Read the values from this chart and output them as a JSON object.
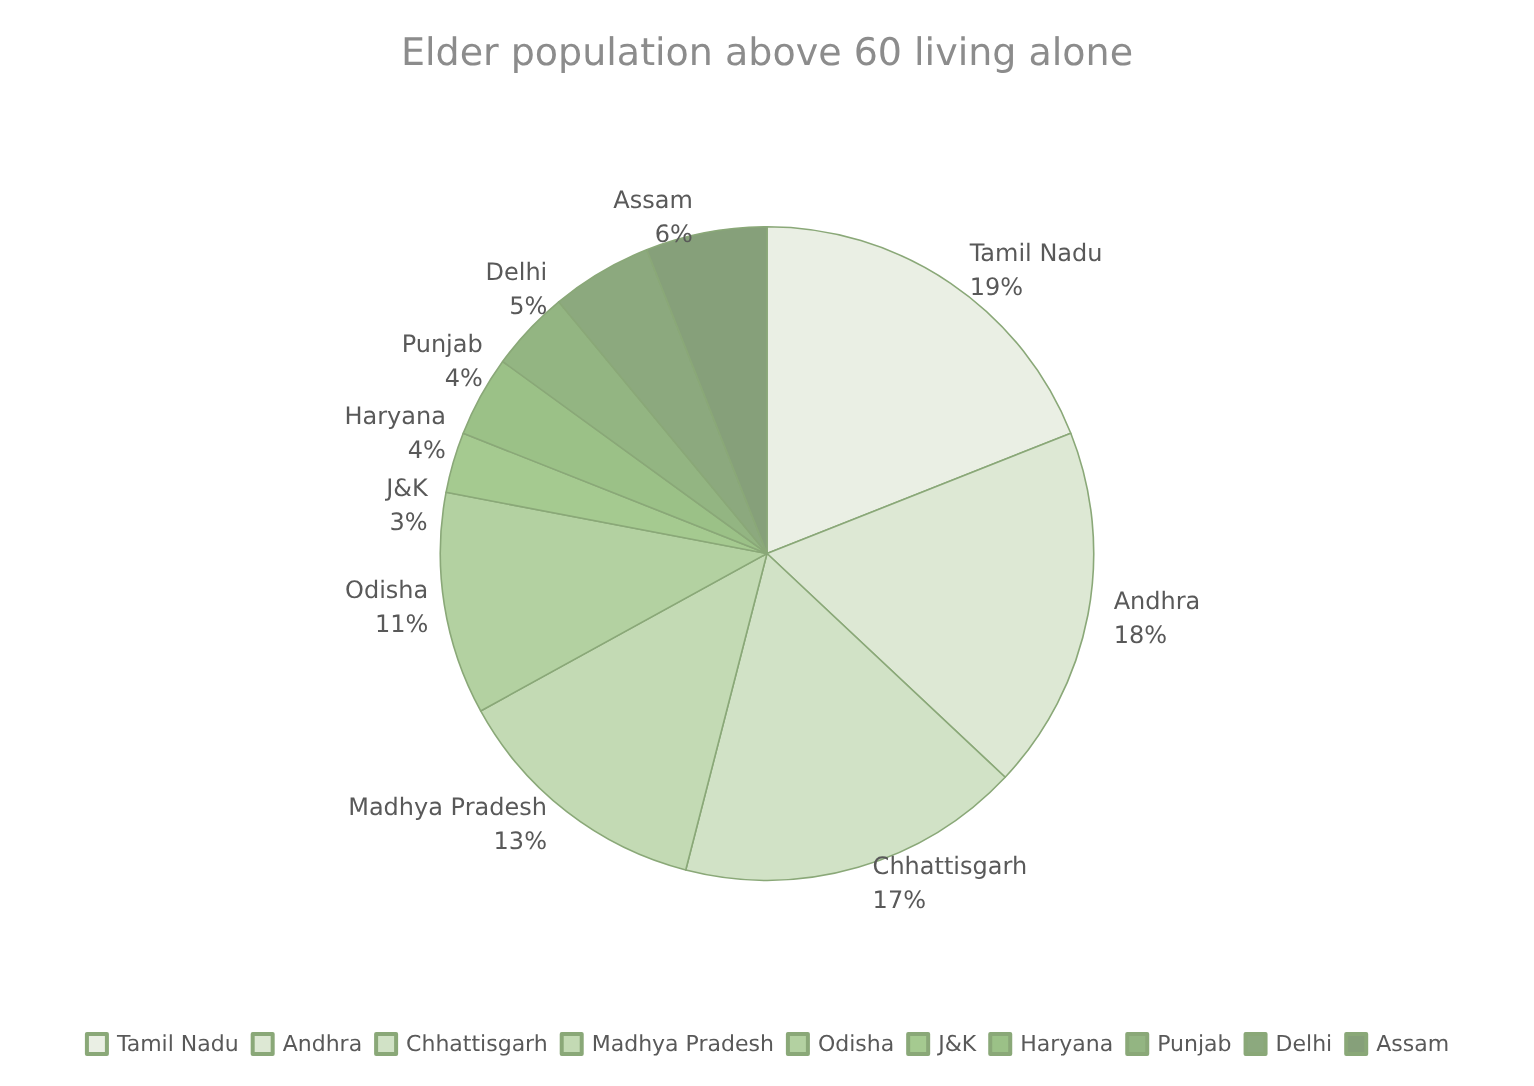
{
  "chart_data": {
    "type": "pie",
    "title": "Elder population above 60 living alone",
    "categories": [
      "Tamil Nadu",
      "Andhra",
      "Chhattisgarh",
      "Madhya Pradesh",
      "Odisha",
      "J&K",
      "Haryana",
      "Punjab",
      "Delhi",
      "Assam"
    ],
    "values": [
      19,
      18,
      17,
      13,
      11,
      3,
      4,
      4,
      5,
      6
    ],
    "value_labels": [
      "19%",
      "18%",
      "17%",
      "13%",
      "11%",
      "3%",
      "4%",
      "4%",
      "5%",
      "6%"
    ],
    "colors": [
      "#eaefe4",
      "#dde8d4",
      "#d1e2c6",
      "#c3dab4",
      "#b3d1a1",
      "#a5ca90",
      "#9bc187",
      "#93b582",
      "#8ca97e",
      "#86a07a"
    ],
    "legend": "bottom"
  }
}
